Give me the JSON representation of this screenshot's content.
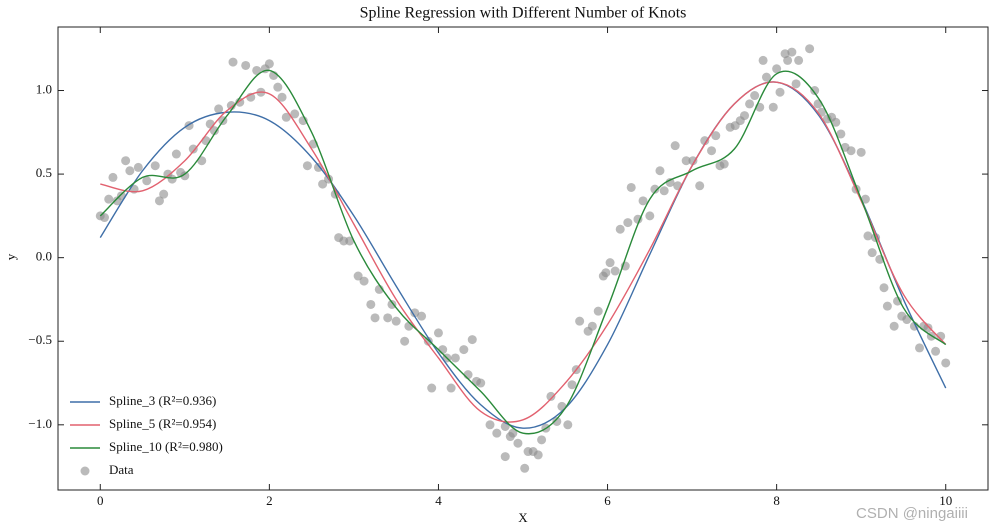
{
  "chart_data": {
    "type": "line",
    "title": "Spline Regression with Different Number of Knots",
    "x_label": "X",
    "y_label": "y",
    "x": [
      0,
      0.5,
      1,
      1.5,
      2,
      2.5,
      3,
      3.5,
      4,
      4.5,
      5,
      5.5,
      6,
      6.5,
      7,
      7.5,
      8,
      8.5,
      9,
      9.5,
      10
    ],
    "series": [
      {
        "name": "Spline_3 (R²=0.936)",
        "color": "#3f6fa8",
        "values": [
          0.12,
          0.52,
          0.78,
          0.87,
          0.82,
          0.6,
          0.25,
          -0.17,
          -0.57,
          -0.88,
          -1.02,
          -0.9,
          -0.52,
          0.02,
          0.55,
          0.92,
          1.05,
          0.85,
          0.35,
          -0.25,
          -0.78
        ]
      },
      {
        "name": "Spline_5 (R²=0.954)",
        "color": "#e2616f",
        "values": [
          0.44,
          0.4,
          0.58,
          0.88,
          0.98,
          0.65,
          0.2,
          -0.25,
          -0.6,
          -0.92,
          -0.97,
          -0.75,
          -0.4,
          0.05,
          0.55,
          0.92,
          1.05,
          0.86,
          0.34,
          -0.22,
          -0.52
        ]
      },
      {
        "name": "Spline_10 (R²=0.980)",
        "color": "#2a8a3a",
        "values": [
          0.25,
          0.48,
          0.5,
          0.85,
          1.12,
          0.75,
          0.1,
          -0.3,
          -0.55,
          -0.8,
          -1.05,
          -0.9,
          -0.3,
          0.35,
          0.52,
          0.65,
          1.1,
          0.95,
          0.35,
          -0.3,
          -0.52
        ]
      }
    ],
    "scatter": {
      "name": "Data",
      "color": "#8c8c8c",
      "x": [
        0,
        0.05,
        0.1,
        0.15,
        0.2,
        0.25,
        0.3,
        0.35,
        0.4,
        0.45,
        0.55,
        0.65,
        0.7,
        0.75,
        0.8,
        0.85,
        0.9,
        0.95,
        1.0,
        1.05,
        1.1,
        1.2,
        1.25,
        1.3,
        1.35,
        1.4,
        1.45,
        1.55,
        1.57,
        1.65,
        1.72,
        1.78,
        1.85,
        1.9,
        1.95,
        2.0,
        2.05,
        2.1,
        2.15,
        2.2,
        2.3,
        2.4,
        2.45,
        2.52,
        2.58,
        2.63,
        2.7,
        2.78,
        2.82,
        2.88,
        2.95,
        3.05,
        3.12,
        3.2,
        3.25,
        3.3,
        3.4,
        3.45,
        3.5,
        3.6,
        3.65,
        3.72,
        3.8,
        3.88,
        3.92,
        4.0,
        4.05,
        4.1,
        4.15,
        4.2,
        4.3,
        4.35,
        4.4,
        4.45,
        4.5,
        4.61,
        4.69,
        4.79,
        4.79,
        4.85,
        4.88,
        4.94,
        5.02,
        5.06,
        5.12,
        5.18,
        5.22,
        5.27,
        5.33,
        5.4,
        5.46,
        5.53,
        5.58,
        5.63,
        5.67,
        5.77,
        5.82,
        5.89,
        5.95,
        5.98,
        6.03,
        6.09,
        6.15,
        6.21,
        6.24,
        6.28,
        6.36,
        6.42,
        6.5,
        6.56,
        6.62,
        6.67,
        6.74,
        6.8,
        6.83,
        6.93,
        7.01,
        7.09,
        7.15,
        7.23,
        7.28,
        7.33,
        7.38,
        7.45,
        7.51,
        7.57,
        7.62,
        7.68,
        7.74,
        7.8,
        7.84,
        7.88,
        7.96,
        8.0,
        8.04,
        8.1,
        8.13,
        8.18,
        8.23,
        8.26,
        8.39,
        8.45,
        8.49,
        8.53,
        8.6,
        8.65,
        8.7,
        8.76,
        8.81,
        8.88,
        8.94,
        9.0,
        9.05,
        9.08,
        9.13,
        9.17,
        9.22,
        9.27,
        9.31,
        9.39,
        9.43,
        9.48,
        9.54,
        9.63,
        9.69,
        9.74,
        9.79,
        9.83,
        9.88,
        9.94,
        10.0
      ],
      "y": [
        0.25,
        0.24,
        0.35,
        0.48,
        0.34,
        0.37,
        0.58,
        0.52,
        0.41,
        0.54,
        0.46,
        0.55,
        0.34,
        0.38,
        0.5,
        0.47,
        0.62,
        0.51,
        0.49,
        0.79,
        0.65,
        0.58,
        0.7,
        0.8,
        0.76,
        0.89,
        0.82,
        0.91,
        1.17,
        0.93,
        1.15,
        0.96,
        1.12,
        0.99,
        1.13,
        1.16,
        1.09,
        1.02,
        0.96,
        0.84,
        0.86,
        0.82,
        0.55,
        0.68,
        0.54,
        0.44,
        0.47,
        0.38,
        0.12,
        0.1,
        0.1,
        -0.11,
        -0.14,
        -0.28,
        -0.36,
        -0.19,
        -0.36,
        -0.28,
        -0.38,
        -0.5,
        -0.41,
        -0.33,
        -0.35,
        -0.5,
        -0.78,
        -0.45,
        -0.55,
        -0.6,
        -0.78,
        -0.6,
        -0.55,
        -0.7,
        -0.49,
        -0.74,
        -0.75,
        -1.0,
        -1.05,
        -1.01,
        -1.19,
        -1.07,
        -1.05,
        -1.11,
        -1.26,
        -1.16,
        -1.16,
        -1.18,
        -1.09,
        -1.02,
        -0.83,
        -0.98,
        -0.89,
        -1.0,
        -0.76,
        -0.67,
        -0.38,
        -0.44,
        -0.41,
        -0.32,
        -0.11,
        -0.09,
        -0.03,
        -0.08,
        0.17,
        -0.05,
        0.21,
        0.42,
        0.23,
        0.34,
        0.25,
        0.41,
        0.52,
        0.4,
        0.45,
        0.67,
        0.43,
        0.58,
        0.58,
        0.43,
        0.7,
        0.64,
        0.73,
        0.55,
        0.56,
        0.78,
        0.79,
        0.82,
        0.85,
        0.92,
        0.97,
        0.9,
        1.18,
        1.08,
        0.9,
        1.13,
        0.99,
        1.22,
        1.18,
        1.23,
        1.04,
        1.18,
        1.25,
        1.0,
        0.92,
        0.87,
        0.83,
        0.84,
        0.81,
        0.74,
        0.66,
        0.64,
        0.41,
        0.63,
        0.35,
        0.13,
        0.03,
        0.12,
        -0.01,
        -0.18,
        -0.29,
        -0.41,
        -0.26,
        -0.35,
        -0.37,
        -0.41,
        -0.54,
        -0.41,
        -0.42,
        -0.47,
        -0.56,
        -0.47,
        -0.63
      ]
    },
    "xlim": [
      -0.5,
      10.5
    ],
    "ylim": [
      -1.39,
      1.38
    ],
    "xticks": [
      0,
      2,
      4,
      6,
      8,
      10
    ],
    "yticks": [
      {
        "value": -1,
        "label": "−1.0"
      },
      {
        "value": -0.5,
        "label": "−0.5"
      },
      {
        "value": 0,
        "label": "0.0"
      },
      {
        "value": 0.5,
        "label": "0.5"
      },
      {
        "value": 1,
        "label": "1.0"
      }
    ],
    "grid": false,
    "legend": "lower left"
  },
  "watermark": "CSDN @ningaiiii"
}
